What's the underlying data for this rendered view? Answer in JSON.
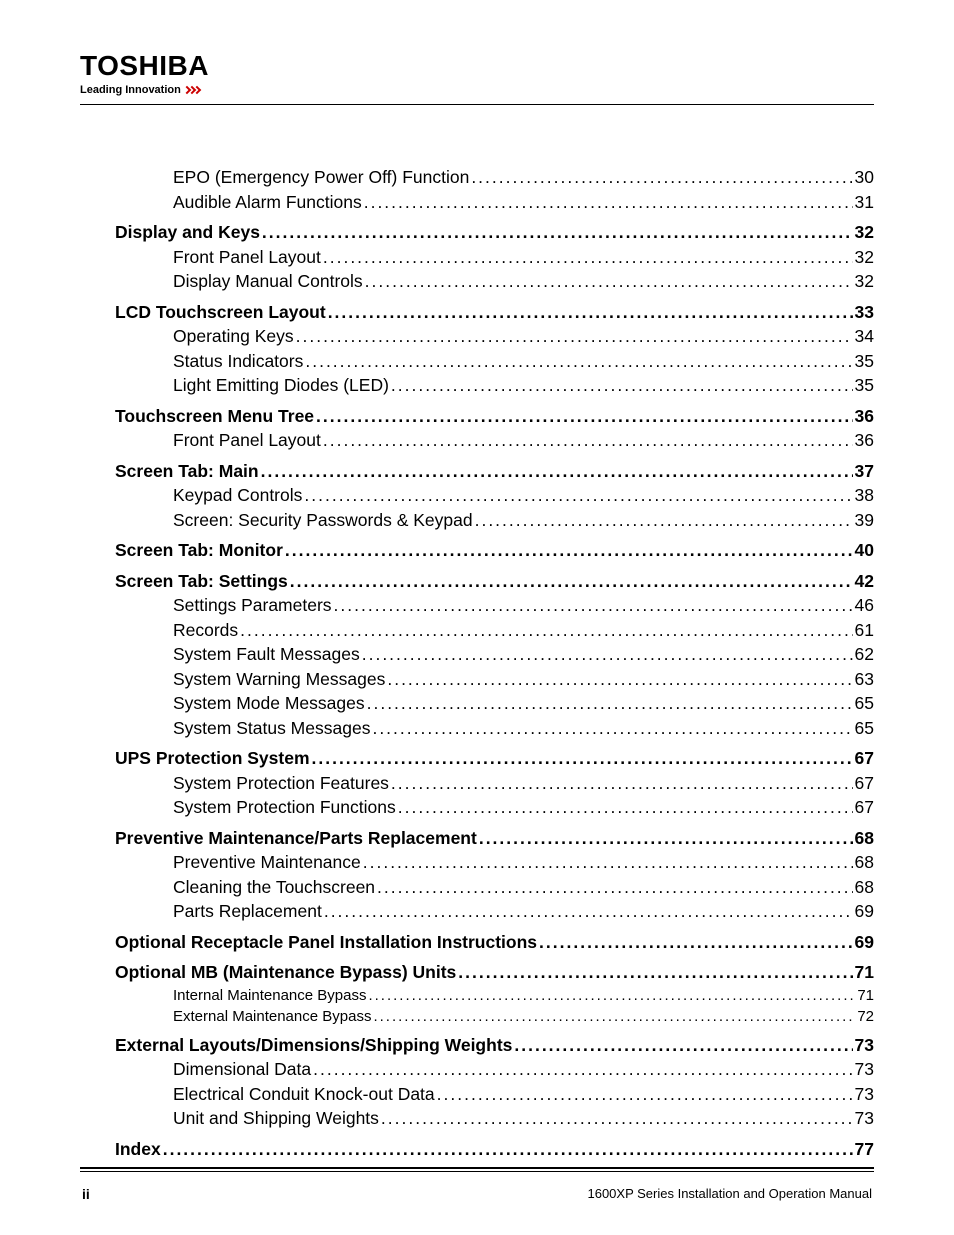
{
  "header": {
    "brand": "TOSHIBA",
    "tagline": "Leading Innovation"
  },
  "toc": [
    {
      "level": 2,
      "items": [
        {
          "label": "EPO (Emergency Power Off) Function",
          "page": "30"
        },
        {
          "label": "Audible Alarm Functions",
          "page": "31"
        }
      ]
    },
    {
      "level": 1,
      "title": {
        "label": "Display and Keys",
        "page": "32"
      },
      "items": [
        {
          "label": "Front Panel Layout",
          "page": "32"
        },
        {
          "label": "Display Manual Controls",
          "page": "32"
        }
      ]
    },
    {
      "level": 1,
      "title": {
        "label": "LCD Touchscreen Layout",
        "page": "33"
      },
      "items": [
        {
          "label": "Operating Keys",
          "page": "34"
        },
        {
          "label": "Status Indicators",
          "page": "35"
        },
        {
          "label": "Light Emitting Diodes (LED)",
          "page": "35"
        }
      ]
    },
    {
      "level": 1,
      "title": {
        "label": "Touchscreen Menu Tree",
        "page": "36"
      },
      "items": [
        {
          "label": "Front Panel Layout",
          "page": "36"
        }
      ]
    },
    {
      "level": 1,
      "title": {
        "label": "Screen Tab: Main",
        "page": "37"
      },
      "items": [
        {
          "label": "Keypad Controls",
          "page": "38"
        },
        {
          "label": "Screen: Security Passwords & Keypad",
          "page": "39"
        }
      ]
    },
    {
      "level": 1,
      "title": {
        "label": "Screen Tab: Monitor",
        "page": "40"
      },
      "items": []
    },
    {
      "level": 1,
      "title": {
        "label": "Screen Tab: Settings",
        "page": "42"
      },
      "items": [
        {
          "label": "Settings Parameters",
          "page": "46"
        },
        {
          "label": "Records",
          "page": "61"
        },
        {
          "label": "System Fault Messages",
          "page": "62"
        },
        {
          "label": "System Warning Messages",
          "page": "63"
        },
        {
          "label": "System Mode Messages",
          "page": "65"
        },
        {
          "label": "System Status Messages",
          "page": "65"
        }
      ]
    },
    {
      "level": 1,
      "title": {
        "label": "UPS Protection System",
        "page": "67"
      },
      "items": [
        {
          "label": "System Protection Features",
          "page": "67"
        },
        {
          "label": "System Protection Functions",
          "page": "67"
        }
      ]
    },
    {
      "level": 1,
      "title": {
        "label": "Preventive Maintenance/Parts Replacement",
        "page": "68"
      },
      "items": [
        {
          "label": "Preventive Maintenance",
          "page": "68"
        },
        {
          "label": "Cleaning the Touchscreen",
          "page": "68"
        },
        {
          "label": "Parts Replacement",
          "page": "69"
        }
      ]
    },
    {
      "level": 1,
      "title": {
        "label": "Optional Receptacle Panel Installation Instructions",
        "page": "69"
      },
      "items": []
    },
    {
      "level": 1,
      "title": {
        "label": "Optional MB (Maintenance Bypass) Units",
        "page": "71"
      },
      "small": true,
      "items": [
        {
          "label": "Internal Maintenance Bypass",
          "page": "71"
        },
        {
          "label": "External Maintenance Bypass",
          "page": "72"
        }
      ]
    },
    {
      "level": 1,
      "title": {
        "label": "External Layouts/Dimensions/Shipping Weights",
        "page": "73"
      },
      "items": [
        {
          "label": "Dimensional Data",
          "page": "73"
        },
        {
          "label": "Electrical Conduit Knock-out Data",
          "page": "73"
        },
        {
          "label": "Unit and Shipping Weights",
          "page": "73"
        }
      ]
    },
    {
      "level": 1,
      "title": {
        "label": "Index",
        "page": "77"
      },
      "items": []
    }
  ],
  "footer": {
    "page_num": "ii",
    "manual_title": "1600XP Series Installation and Operation Manual"
  },
  "colors": {
    "text": "#000000",
    "accent": "#cc0000",
    "background": "#ffffff"
  }
}
